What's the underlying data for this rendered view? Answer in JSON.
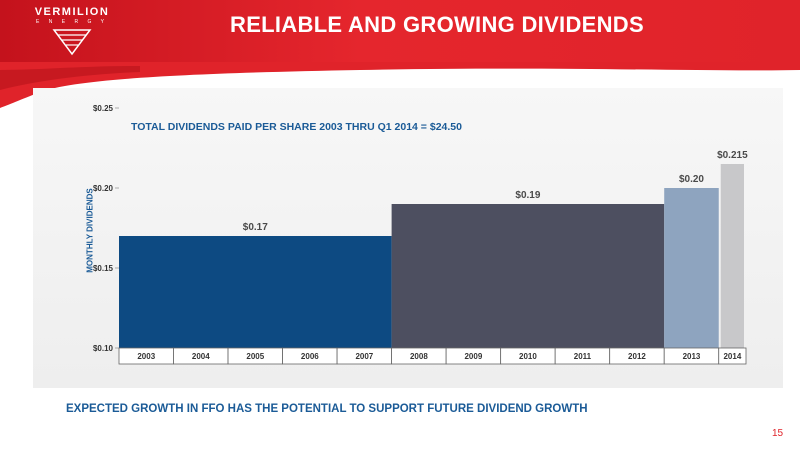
{
  "brand": {
    "name": "VERMILION",
    "tagline": "E N E R G Y",
    "primary_color": "#e0232a",
    "accent_color": "#1b5b97"
  },
  "slide": {
    "title": "RELIABLE AND GROWING DIVIDENDS",
    "footer": "EXPECTED GROWTH IN FFO HAS THE POTENTIAL TO SUPPORT FUTURE DIVIDEND GROWTH",
    "page_number": "15"
  },
  "chart_data": {
    "type": "bar",
    "title": "TOTAL DIVIDENDS PAID PER SHARE 2003 THRU Q1 2014 = $24.50",
    "xlabel": "",
    "ylabel": "MONTHLY DIVIDENDS",
    "ylim": [
      0.1,
      0.25
    ],
    "yticks": [
      "$0.10",
      "$0.15",
      "$0.20",
      "$0.25"
    ],
    "ytick_values": [
      0.1,
      0.15,
      0.2,
      0.25
    ],
    "categories": [
      "2003",
      "2004",
      "2005",
      "2006",
      "2007",
      "2008",
      "2009",
      "2010",
      "2011",
      "2012",
      "2013",
      "2014"
    ],
    "segments": [
      {
        "from": "2003",
        "to": "2007",
        "value": 0.17,
        "label": "$0.17",
        "color": "#0d4a82"
      },
      {
        "from": "2008",
        "to": "2012",
        "value": 0.19,
        "label": "$0.19",
        "color": "#4d4f60"
      },
      {
        "from": "2013",
        "to": "2013",
        "value": 0.2,
        "label": "$0.20",
        "color": "#8ea4bf"
      },
      {
        "from": "2014",
        "to": "2014",
        "value": 0.215,
        "label": "$0.215",
        "color": "#c8c8ca"
      }
    ],
    "grid": false,
    "legend": "none"
  }
}
